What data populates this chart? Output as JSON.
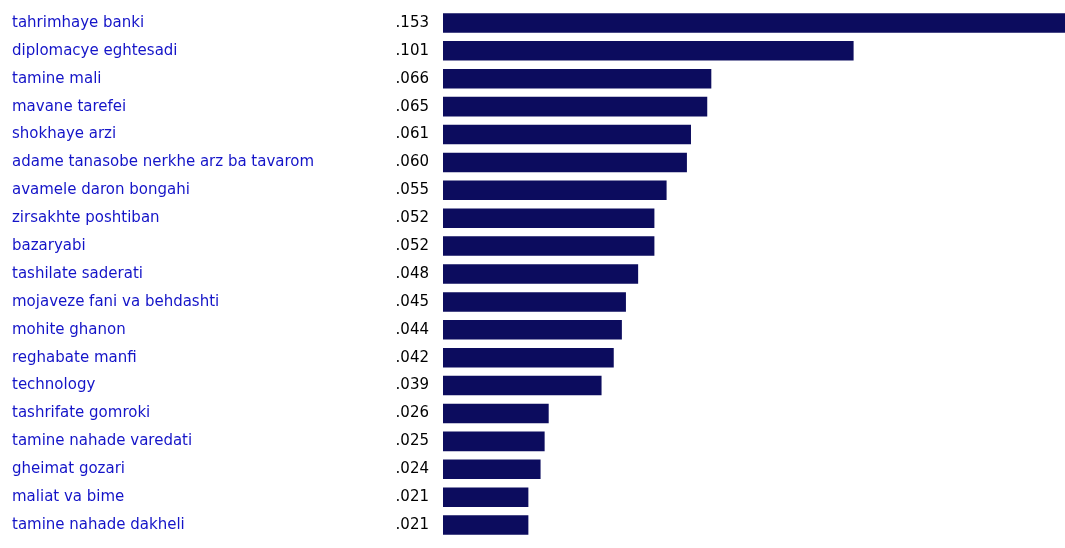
{
  "chart_data": {
    "type": "bar",
    "orientation": "horizontal",
    "tick_labels": "y",
    "categories": [
      "tahrimhaye banki",
      "diplomacye eghtesadi",
      "tamine mali",
      "mavane tarefei",
      "shokhaye arzi",
      "adame tanasobe nerkhe arz ba tavarom",
      "avamele daron bongahi",
      "zirsakhte poshtiban",
      "bazaryabi",
      "tashilate saderati",
      "mojaveze fani va behdashti",
      "mohite ghanon",
      "reghabate manfi",
      "technology",
      "tashrifate gomroki",
      "tamine nahade varedati",
      "gheimat gozari",
      "maliat va bime",
      "tamine nahade dakheli"
    ],
    "values": [
      0.153,
      0.101,
      0.066,
      0.065,
      0.061,
      0.06,
      0.055,
      0.052,
      0.052,
      0.048,
      0.045,
      0.044,
      0.042,
      0.039,
      0.026,
      0.025,
      0.024,
      0.021,
      0.021
    ],
    "value_labels": [
      ".153",
      ".101",
      ".066",
      ".065",
      ".061",
      ".060",
      ".055",
      ".052",
      ".052",
      ".048",
      ".045",
      ".044",
      ".042",
      ".039",
      ".026",
      ".025",
      ".024",
      ".021",
      ".021"
    ],
    "color": "#0c0c5e"
  }
}
